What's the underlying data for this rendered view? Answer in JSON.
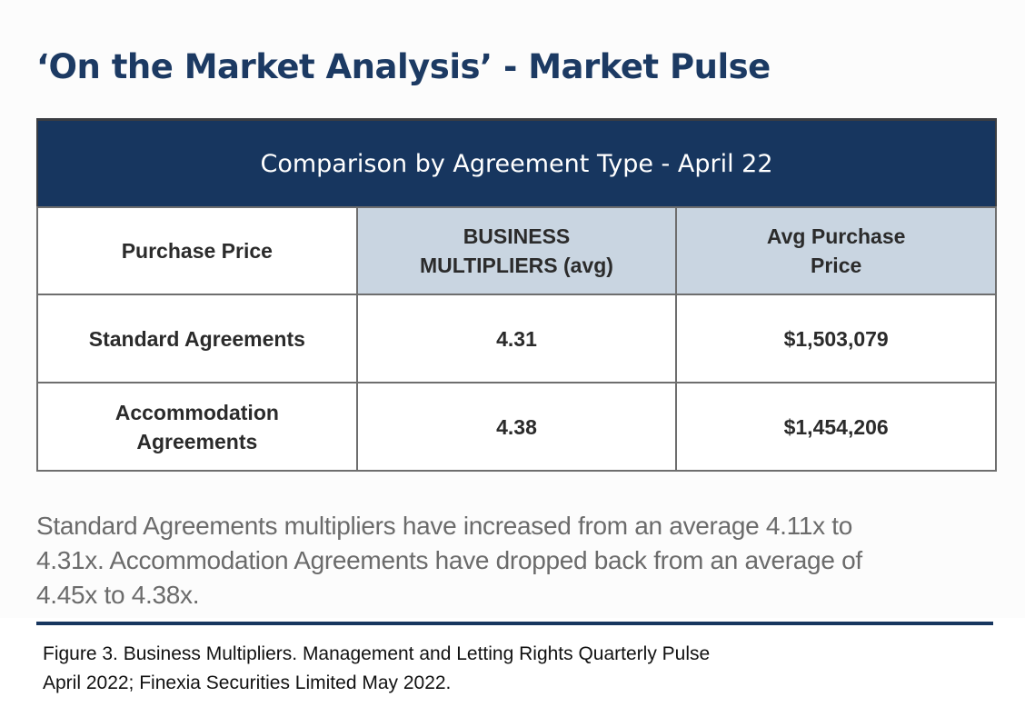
{
  "page_title": "‘On the Market Analysis’ - Market Pulse",
  "table": {
    "banner_title": "Comparison by Agreement Type - April 22",
    "headers": [
      "Purchase Price",
      "BUSINESS MULTIPLIERS (avg)",
      "Avg Purchase Price"
    ],
    "header_lines": {
      "col2_line1": "BUSINESS",
      "col2_line2": "MULTIPLIERS (avg)",
      "col3_line1": "Avg Purchase",
      "col3_line2": "Price"
    },
    "rows": [
      {
        "label": "Standard Agreements",
        "label_line1": "Standard Agreements",
        "label_line2": "",
        "multiplier": "4.31",
        "avg_price": "$1,503,079"
      },
      {
        "label": "Accommodation Agreements",
        "label_line1": "Accommodation",
        "label_line2": "Agreements",
        "multiplier": "4.38",
        "avg_price": "$1,454,206"
      }
    ]
  },
  "summary": {
    "line1": "Standard Agreements multipliers have increased from an average 4.11x to",
    "line2": "4.31x. Accommodation Agreements have dropped back from an average of",
    "line3": "4.45x to 4.38x."
  },
  "caption": {
    "line1": "Figure 3. Business Multipliers. Management and Letting Rights Quarterly Pulse",
    "line2": "April 2022; Finexia Securities Limited May 2022."
  },
  "colors": {
    "navy": "#17365f",
    "title_navy": "#1c3a63",
    "header_shade": "#c9d5e1",
    "summary_gray": "#6b6b6b"
  }
}
